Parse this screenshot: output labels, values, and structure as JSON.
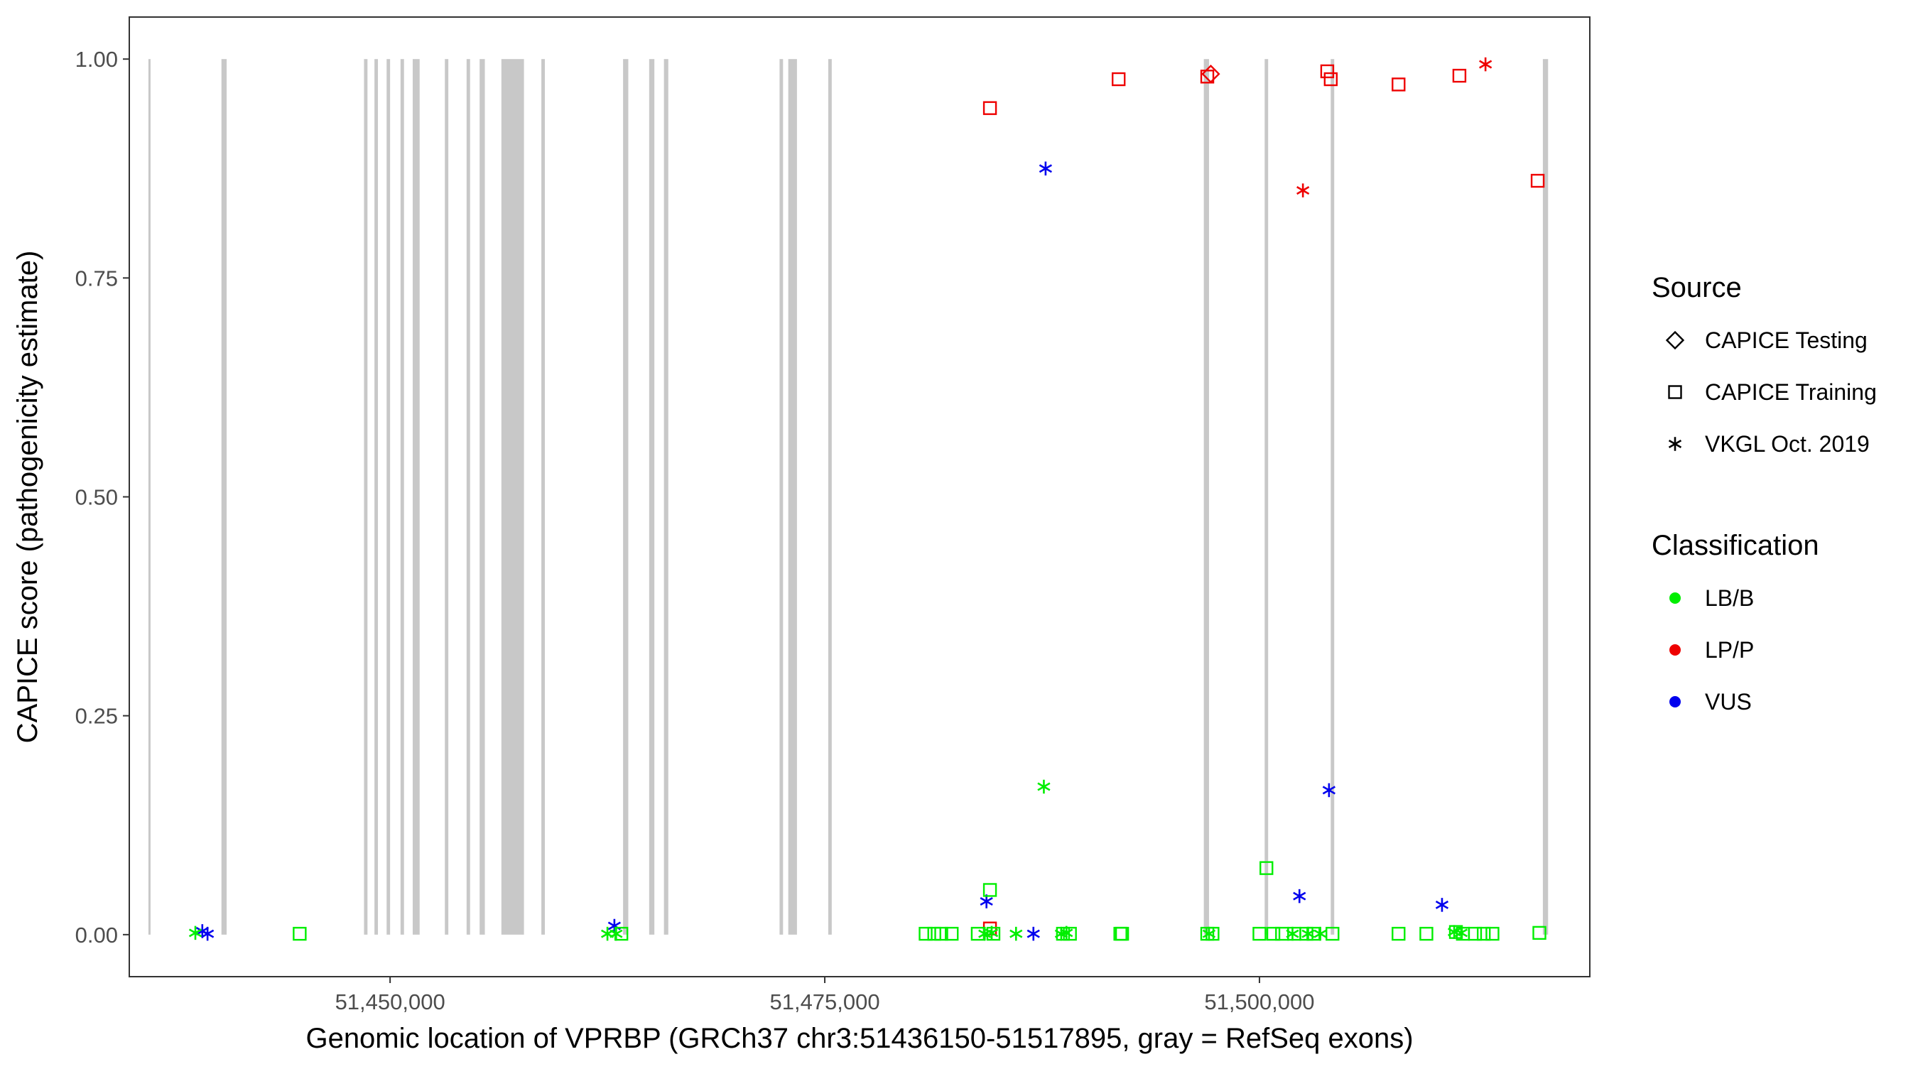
{
  "chart_data": {
    "type": "scatter",
    "title": "",
    "xlabel": "Genomic location of VPRBP (GRCh37 chr3:51436150-51517895, gray = RefSeq exons)",
    "ylabel": "CAPICE score (pathogenicity estimate)",
    "xlim": [
      51435000,
      51519000
    ],
    "ylim": [
      -0.048,
      1.048
    ],
    "x_ticks": [
      51450000,
      51475000,
      51500000
    ],
    "x_tick_labels": [
      "51,450,000",
      "51,475,000",
      "51,500,000"
    ],
    "y_ticks": [
      0.0,
      0.25,
      0.5,
      0.75,
      1.0
    ],
    "y_tick_labels": [
      "0.00",
      "0.25",
      "0.50",
      "0.75",
      "1.00"
    ],
    "grid": false,
    "exon_color": "#c8c8c8",
    "exons": [
      [
        51436100,
        51436200
      ],
      [
        51440300,
        51440600
      ],
      [
        51448500,
        51448700
      ],
      [
        51449100,
        51449300
      ],
      [
        51449800,
        51450000
      ],
      [
        51450600,
        51450800
      ],
      [
        51451300,
        51451700
      ],
      [
        51453150,
        51453350
      ],
      [
        51454400,
        51454600
      ],
      [
        51455150,
        51455450
      ],
      [
        51456400,
        51457700
      ],
      [
        51458700,
        51458900
      ],
      [
        51463400,
        51463700
      ],
      [
        51464900,
        51465200
      ],
      [
        51465750,
        51466000
      ],
      [
        51472400,
        51472600
      ],
      [
        51472900,
        51473400
      ],
      [
        51475200,
        51475400
      ],
      [
        51496800,
        51497100
      ],
      [
        51500300,
        51500500
      ],
      [
        51504100,
        51504300
      ],
      [
        51516300,
        51516600
      ]
    ],
    "legend": [
      {
        "title": "Source",
        "entries": [
          {
            "label": "CAPICE Testing",
            "shape": "diamond"
          },
          {
            "label": "CAPICE Training",
            "shape": "square"
          },
          {
            "label": "VKGL Oct. 2019",
            "shape": "asterisk"
          }
        ]
      },
      {
        "title": "Classification",
        "entries": [
          {
            "label": "LB/B",
            "color": "#00ee00"
          },
          {
            "label": "LP/P",
            "color": "#ee0000"
          },
          {
            "label": "VUS",
            "color": "#0000ee"
          }
        ]
      }
    ],
    "legend_position": "right",
    "series": [
      {
        "name": "LP/P",
        "source": "CAPICE Training",
        "shape": "square",
        "color": "#ee0000",
        "points": [
          [
            51484500,
            0.944
          ],
          [
            51491900,
            0.977
          ],
          [
            51497000,
            0.98
          ],
          [
            51503900,
            0.986
          ],
          [
            51504100,
            0.977
          ],
          [
            51508000,
            0.971
          ],
          [
            51511500,
            0.981
          ],
          [
            51516000,
            0.861
          ],
          [
            51484500,
            0.007
          ]
        ]
      },
      {
        "name": "LP/P",
        "source": "CAPICE Testing",
        "shape": "diamond",
        "color": "#ee0000",
        "points": [
          [
            51497200,
            0.983
          ]
        ]
      },
      {
        "name": "LP/P",
        "source": "VKGL Oct. 2019",
        "shape": "asterisk",
        "color": "#ee0000",
        "points": [
          [
            51513000,
            0.994
          ],
          [
            51502500,
            0.85
          ]
        ]
      },
      {
        "name": "VUS",
        "source": "VKGL Oct. 2019",
        "shape": "asterisk",
        "color": "#0000ee",
        "points": [
          [
            51439200,
            0.004
          ],
          [
            51439500,
            0.001
          ],
          [
            51462900,
            0.01
          ],
          [
            51487700,
            0.875
          ],
          [
            51484300,
            0.038
          ],
          [
            51487000,
            0.001
          ],
          [
            51502300,
            0.044
          ],
          [
            51504000,
            0.165
          ],
          [
            51510500,
            0.034
          ]
        ]
      },
      {
        "name": "LB/B",
        "source": "CAPICE Training",
        "shape": "square",
        "color": "#00ee00",
        "points": [
          [
            51444800,
            0.001
          ],
          [
            51463300,
            0.001
          ],
          [
            51480800,
            0.001
          ],
          [
            51481300,
            0.001
          ],
          [
            51481700,
            0.001
          ],
          [
            51482300,
            0.001
          ],
          [
            51483800,
            0.001
          ],
          [
            51484500,
            0.051
          ],
          [
            51484700,
            0.001
          ],
          [
            51488700,
            0.001
          ],
          [
            51489100,
            0.001
          ],
          [
            51492000,
            0.001
          ],
          [
            51492100,
            0.001
          ],
          [
            51497000,
            0.001
          ],
          [
            51497300,
            0.001
          ],
          [
            51500000,
            0.001
          ],
          [
            51500400,
            0.076
          ],
          [
            51500800,
            0.001
          ],
          [
            51501300,
            0.001
          ],
          [
            51502000,
            0.001
          ],
          [
            51502700,
            0.001
          ],
          [
            51503100,
            0.001
          ],
          [
            51504200,
            0.001
          ],
          [
            51508000,
            0.001
          ],
          [
            51509600,
            0.001
          ],
          [
            51511300,
            0.003
          ],
          [
            51511700,
            0.001
          ],
          [
            51512400,
            0.001
          ],
          [
            51512900,
            0.001
          ],
          [
            51513400,
            0.001
          ],
          [
            51516100,
            0.002
          ]
        ]
      },
      {
        "name": "LB/B",
        "source": "VKGL Oct. 2019",
        "shape": "asterisk",
        "color": "#00ee00",
        "points": [
          [
            51438800,
            0.002
          ],
          [
            51462500,
            0.001
          ],
          [
            51463000,
            0.001
          ],
          [
            51484200,
            0.001
          ],
          [
            51484600,
            0.002
          ],
          [
            51486000,
            0.001
          ],
          [
            51487600,
            0.169
          ],
          [
            51488600,
            0.001
          ],
          [
            51488900,
            0.002
          ],
          [
            51497100,
            0.001
          ],
          [
            51501900,
            0.001
          ],
          [
            51502800,
            0.001
          ],
          [
            51503500,
            0.001
          ],
          [
            51511200,
            0.003
          ],
          [
            51511600,
            0.002
          ]
        ]
      }
    ]
  }
}
